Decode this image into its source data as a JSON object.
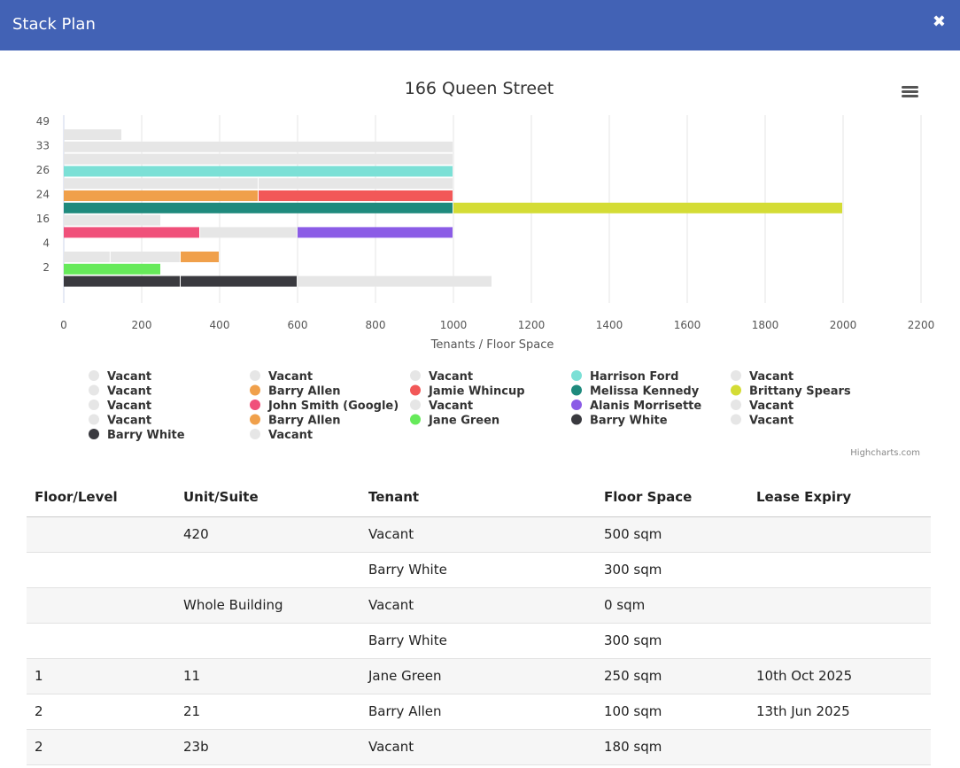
{
  "header": {
    "title": "Stack Plan",
    "close_label": "✖"
  },
  "chart_data": {
    "type": "bar",
    "title": "166 Queen Street",
    "xlabel": "Tenants / Floor Space",
    "credit": "Highcharts.com",
    "xlim": [
      0,
      2200
    ],
    "x_ticks": [
      0,
      200,
      400,
      600,
      800,
      1000,
      1200,
      1400,
      1600,
      1800,
      2000,
      2200
    ],
    "y_labels": [
      "49",
      "33",
      "26",
      "24",
      "16",
      "4",
      "2"
    ],
    "rows": [
      [
        {
          "name": "Vacant",
          "value": 150,
          "color": "#e6e6e6"
        }
      ],
      [
        {
          "name": "Vacant",
          "value": 1000,
          "color": "#e6e6e6"
        }
      ],
      [
        {
          "name": "Vacant",
          "value": 1000,
          "color": "#e6e6e6"
        }
      ],
      [
        {
          "name": "Harrison Ford",
          "value": 1000,
          "color": "#7be0d6"
        }
      ],
      [
        {
          "name": "Vacant",
          "value": 500,
          "color": "#e6e6e6"
        },
        {
          "name": "Vacant",
          "value": 500,
          "color": "#e6e6e6"
        }
      ],
      [
        {
          "name": "Barry Allen",
          "value": 500,
          "color": "#f0a04b"
        },
        {
          "name": "Jamie Whincup",
          "value": 500,
          "color": "#f25858"
        }
      ],
      [
        {
          "name": "Melissa Kennedy",
          "value": 1000,
          "color": "#1f8a7d"
        },
        {
          "name": "Brittany Spears",
          "value": 1000,
          "color": "#d4dc35"
        }
      ],
      [
        {
          "name": "Vacant",
          "value": 250,
          "color": "#e6e6e6"
        }
      ],
      [
        {
          "name": "John Smith (Google)",
          "value": 350,
          "color": "#f0507a"
        },
        {
          "name": "Vacant",
          "value": 250,
          "color": "#e6e6e6"
        },
        {
          "name": "Alanis Morrisette",
          "value": 400,
          "color": "#8b5ce6"
        }
      ],
      [],
      [
        {
          "name": "Vacant",
          "value": 120,
          "color": "#e6e6e6"
        },
        {
          "name": "Vacant",
          "value": 180,
          "color": "#e6e6e6"
        },
        {
          "name": "Barry Allen",
          "value": 100,
          "color": "#f0a04b"
        }
      ],
      [
        {
          "name": "Jane Green",
          "value": 250,
          "color": "#66ea5a"
        }
      ],
      [
        {
          "name": "Barry White",
          "value": 300,
          "color": "#3a3a3f"
        },
        {
          "name": "Barry White",
          "value": 300,
          "color": "#3a3a3f"
        },
        {
          "name": "Vacant",
          "value": 500,
          "color": "#e6e6e6"
        }
      ]
    ],
    "legend": [
      [
        {
          "name": "Vacant",
          "color": "#e6e6e6"
        },
        {
          "name": "Vacant",
          "color": "#e6e6e6"
        },
        {
          "name": "Vacant",
          "color": "#e6e6e6"
        },
        {
          "name": "Vacant",
          "color": "#e6e6e6"
        },
        {
          "name": "Barry White",
          "color": "#3a3a3f"
        }
      ],
      [
        {
          "name": "Vacant",
          "color": "#e6e6e6"
        },
        {
          "name": "Barry Allen",
          "color": "#f0a04b"
        },
        {
          "name": "John Smith (Google)",
          "color": "#f0507a"
        },
        {
          "name": "Barry Allen",
          "color": "#f0a04b"
        },
        {
          "name": "Vacant",
          "color": "#e6e6e6"
        }
      ],
      [
        {
          "name": "Vacant",
          "color": "#e6e6e6"
        },
        {
          "name": "Jamie Whincup",
          "color": "#f25858"
        },
        {
          "name": "Vacant",
          "color": "#e6e6e6"
        },
        {
          "name": "Jane Green",
          "color": "#66ea5a"
        }
      ],
      [
        {
          "name": "Harrison Ford",
          "color": "#7be0d6"
        },
        {
          "name": "Melissa Kennedy",
          "color": "#1f8a7d"
        },
        {
          "name": "Alanis Morrisette",
          "color": "#8b5ce6"
        },
        {
          "name": "Barry White",
          "color": "#3a3a3f"
        }
      ],
      [
        {
          "name": "Vacant",
          "color": "#e6e6e6"
        },
        {
          "name": "Brittany Spears",
          "color": "#d4dc35"
        },
        {
          "name": "Vacant",
          "color": "#e6e6e6"
        },
        {
          "name": "Vacant",
          "color": "#e6e6e6"
        }
      ]
    ]
  },
  "table": {
    "headers": [
      "Floor/Level",
      "Unit/Suite",
      "Tenant",
      "Floor Space",
      "Lease Expiry"
    ],
    "rows": [
      [
        "",
        "420",
        "Vacant",
        "500 sqm",
        ""
      ],
      [
        "",
        "",
        "Barry White",
        "300 sqm",
        ""
      ],
      [
        "",
        "Whole Building",
        "Vacant",
        "0 sqm",
        ""
      ],
      [
        "",
        "",
        "Barry White",
        "300 sqm",
        ""
      ],
      [
        "1",
        "11",
        "Jane Green",
        "250 sqm",
        "10th Oct 2025"
      ],
      [
        "2",
        "21",
        "Barry Allen",
        "100 sqm",
        "13th Jun 2025"
      ],
      [
        "2",
        "23b",
        "Vacant",
        "180 sqm",
        ""
      ]
    ]
  }
}
